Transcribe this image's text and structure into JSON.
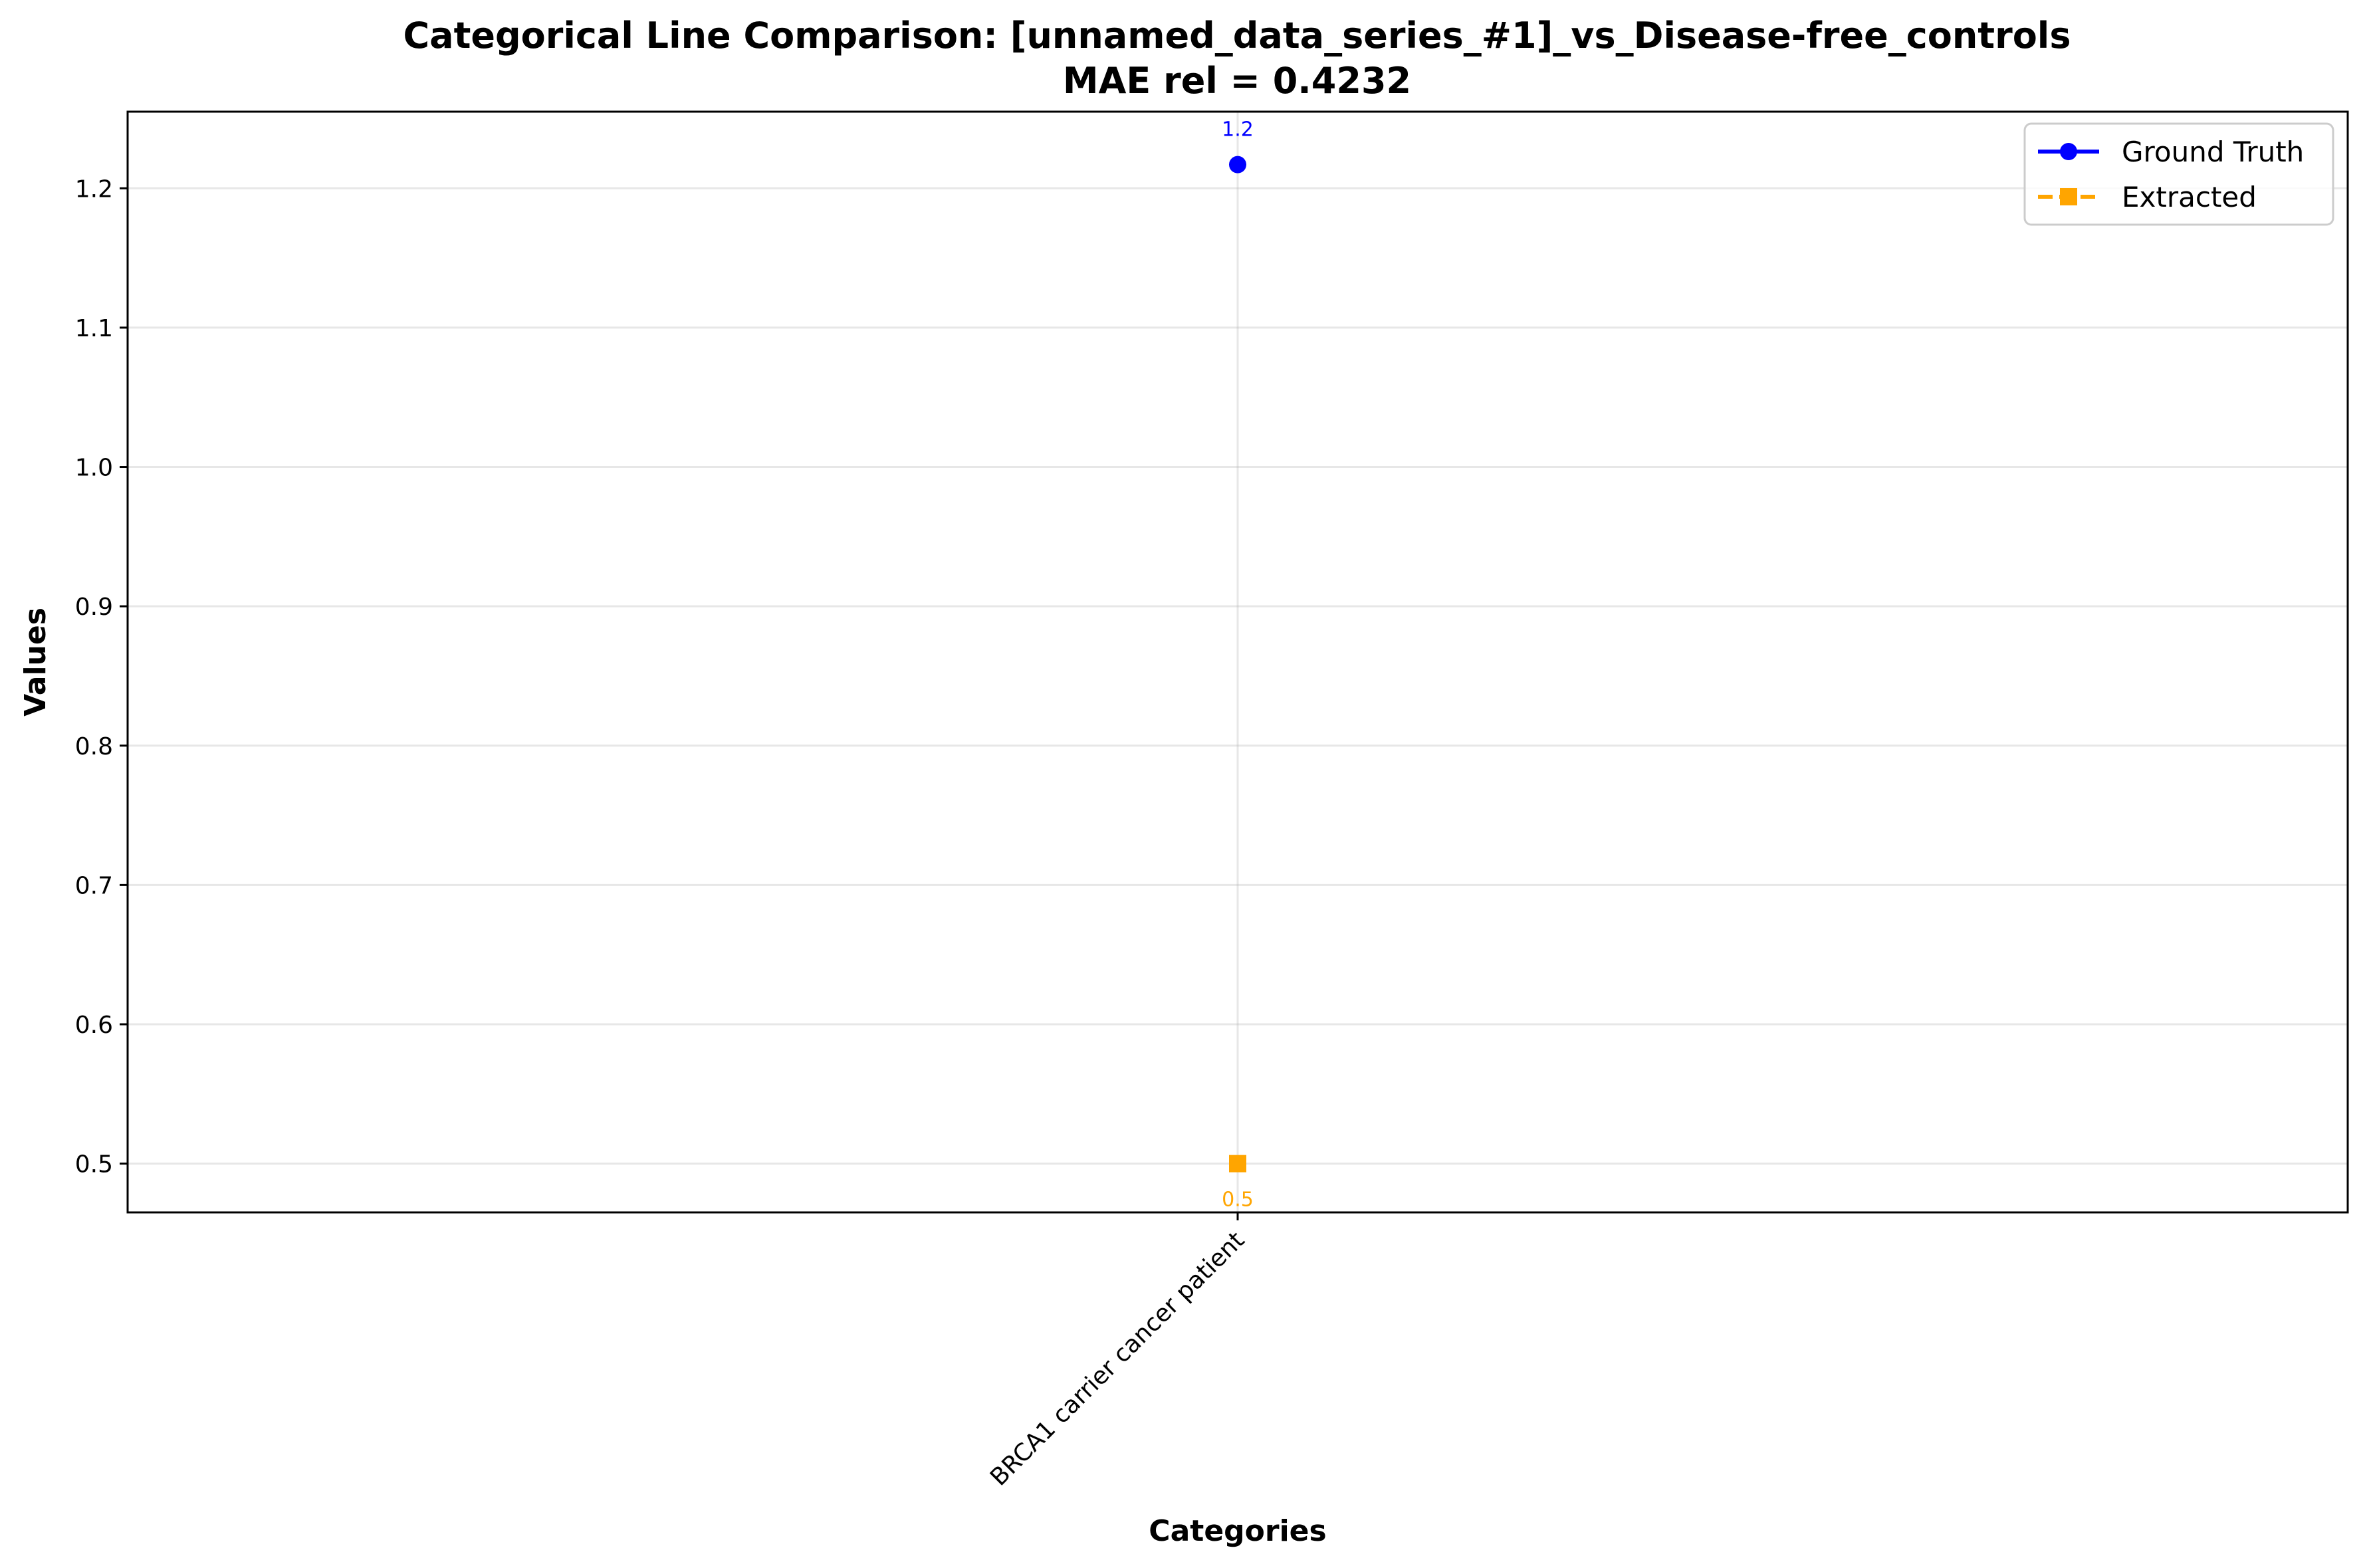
{
  "chart_data": {
    "type": "line",
    "title": "Categorical Line Comparison: [unnamed_data_series_#1]_vs_Disease-free_controls",
    "subtitle": "MAE rel = 0.4232",
    "xlabel": "Categories",
    "ylabel": "Values",
    "categories": [
      "BRCA1 carrier cancer patient"
    ],
    "ylim": [
      0.465,
      1.255
    ],
    "yticks": [
      "0.5",
      "0.6",
      "0.7",
      "0.8",
      "0.9",
      "1.0",
      "1.1",
      "1.2"
    ],
    "grid": true,
    "legend_position": "top-right",
    "series": [
      {
        "name": "Ground Truth",
        "values": [
          1.217
        ],
        "labels": [
          "1.2"
        ],
        "color": "#0000ff",
        "marker": "circle",
        "line_style": "solid",
        "label_side": "above"
      },
      {
        "name": "Extracted",
        "values": [
          0.5
        ],
        "labels": [
          "0.5"
        ],
        "color": "#ffa500",
        "marker": "square",
        "line_style": "dashed",
        "label_side": "below"
      }
    ]
  }
}
